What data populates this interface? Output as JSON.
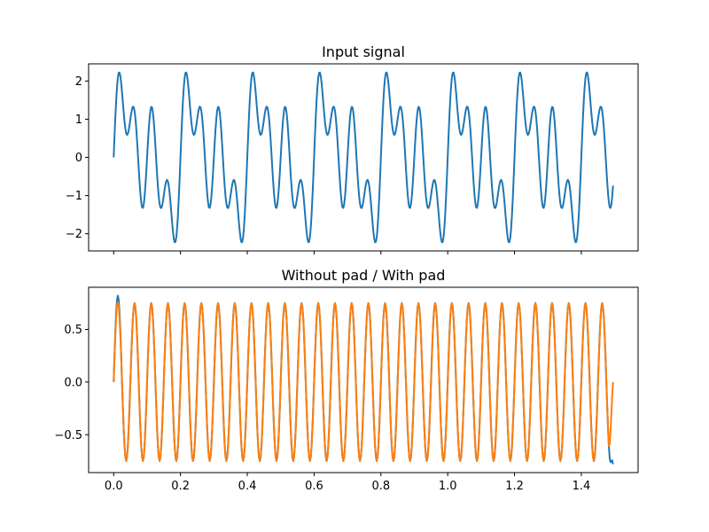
{
  "chart_data": [
    {
      "type": "line",
      "title": "Input signal",
      "xlabel": "",
      "ylabel": "",
      "xlim": [
        -0.075,
        1.57
      ],
      "ylim": [
        -2.45,
        2.45
      ],
      "x_ticks": [
        0.0,
        0.2,
        0.4,
        0.6,
        0.8,
        1.0,
        1.2,
        1.4
      ],
      "x_tick_labels_shown": false,
      "y_ticks": [
        -2,
        -1,
        0,
        1,
        2
      ],
      "y_tick_labels": [
        "−2",
        "−1",
        "0",
        "1",
        "2"
      ],
      "grid": false,
      "x_range": [
        0,
        1.495
      ],
      "sample_step": 0.0025,
      "series": [
        {
          "color": "#1f77b4",
          "components": [
            {
              "freq_hz": 5,
              "amplitude": 1
            },
            {
              "freq_hz": 10,
              "amplitude": 1
            },
            {
              "freq_hz": 20,
              "amplitude": 1
            }
          ]
        }
      ]
    },
    {
      "type": "line",
      "title": "Without pad / With pad",
      "xlabel": "",
      "ylabel": "",
      "xlim": [
        -0.075,
        1.57
      ],
      "ylim": [
        -0.86,
        0.9
      ],
      "x_ticks": [
        0.0,
        0.2,
        0.4,
        0.6,
        0.8,
        1.0,
        1.2,
        1.4
      ],
      "x_tick_labels": [
        "0.0",
        "0.2",
        "0.4",
        "0.6",
        "0.8",
        "1.0",
        "1.2",
        "1.4"
      ],
      "y_ticks": [
        -0.5,
        0.0,
        0.5
      ],
      "y_tick_labels": [
        "−0.5",
        "0.0",
        "0.5"
      ],
      "grid": false,
      "x_range": [
        0,
        1.495
      ],
      "sample_step": 0.0025,
      "series": [
        {
          "color": "#1f77b4",
          "components": [
            {
              "freq_hz": 20,
              "amplitude": 0.75
            }
          ],
          "first_peak": 0.82,
          "end_value": -0.78
        },
        {
          "color": "#ff7f0e",
          "components": [
            {
              "freq_hz": 20,
              "amplitude": 0.75
            }
          ],
          "first_peak": 0.76,
          "end_value": 0.0
        }
      ]
    }
  ]
}
